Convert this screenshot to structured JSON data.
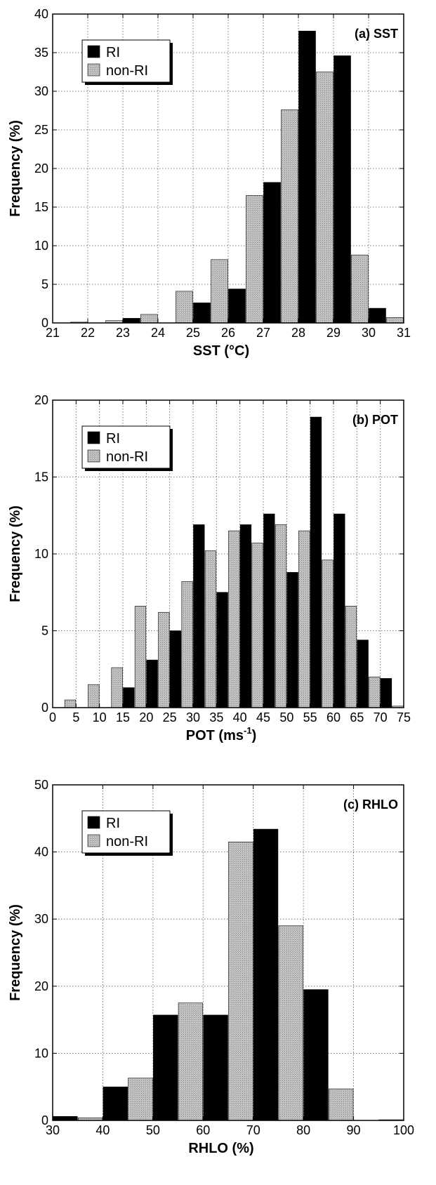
{
  "chart_data": [
    {
      "type": "bar",
      "panel_label": "(a) SST",
      "xlabel": "SST (°C)",
      "ylabel": "Frequency (%)",
      "xlim": [
        21,
        31
      ],
      "ylim": [
        0,
        40
      ],
      "xticks": [
        "21",
        "22",
        "23",
        "24",
        "25",
        "26",
        "27",
        "28",
        "29",
        "30",
        "31"
      ],
      "yticks": [
        "0",
        "5",
        "10",
        "15",
        "20",
        "25",
        "30",
        "35",
        "40"
      ],
      "grid": true,
      "legend_position": "top-left",
      "x": [
        21.5,
        22.5,
        23.5,
        24.5,
        25.5,
        26.5,
        27.5,
        28.5,
        29.5,
        30.5
      ],
      "series": [
        {
          "name": "RI",
          "color": "#000000",
          "values": [
            0,
            0,
            0.6,
            0,
            2.6,
            4.4,
            18.2,
            37.8,
            34.6,
            1.9
          ]
        },
        {
          "name": "non-RI",
          "color": "#b8b8b8",
          "values": [
            0.1,
            0.3,
            1.1,
            4.1,
            8.2,
            16.5,
            27.6,
            32.5,
            8.8,
            0.7
          ]
        }
      ]
    },
    {
      "type": "bar",
      "panel_label": "(b) POT",
      "xlabel": "POT (ms",
      "xlabel_sup": "-1",
      "xlabel_suffix": ")",
      "ylabel": "Frequency (%)",
      "xlim": [
        0,
        75
      ],
      "ylim": [
        0,
        20
      ],
      "xticks": [
        "0",
        "5",
        "10",
        "15",
        "20",
        "25",
        "30",
        "35",
        "40",
        "45",
        "50",
        "55",
        "60",
        "65",
        "70",
        "75"
      ],
      "yticks": [
        "0",
        "5",
        "10",
        "15",
        "20"
      ],
      "grid": true,
      "legend_position": "top-left",
      "x": [
        2.5,
        7.5,
        12.5,
        17.5,
        22.5,
        27.5,
        32.5,
        37.5,
        42.5,
        47.5,
        52.5,
        57.5,
        62.5,
        67.5,
        72.5
      ],
      "series": [
        {
          "name": "RI",
          "color": "#000000",
          "values": [
            0,
            0,
            0,
            1.3,
            3.1,
            5.0,
            11.9,
            7.5,
            11.9,
            12.6,
            8.8,
            18.9,
            12.6,
            4.4,
            1.9
          ]
        },
        {
          "name": "non-RI",
          "color": "#b8b8b8",
          "values": [
            0.5,
            1.5,
            2.6,
            6.6,
            6.2,
            8.2,
            10.2,
            11.5,
            10.7,
            11.9,
            11.5,
            9.6,
            6.6,
            2.0,
            0.1
          ]
        }
      ]
    },
    {
      "type": "bar",
      "panel_label": "(c) RHLO",
      "xlabel": "RHLO (%)",
      "ylabel": "Frequency (%)",
      "xlim": [
        30,
        100
      ],
      "ylim": [
        0,
        50
      ],
      "xticks": [
        "30",
        "40",
        "50",
        "60",
        "70",
        "80",
        "90",
        "100"
      ],
      "yticks": [
        "0",
        "10",
        "20",
        "30",
        "40",
        "50"
      ],
      "grid": true,
      "legend_position": "top-left",
      "x": [
        35,
        45,
        55,
        65,
        75,
        85,
        95
      ],
      "series": [
        {
          "name": "RI",
          "color": "#000000",
          "values": [
            0.6,
            5.0,
            15.7,
            15.7,
            43.4,
            19.5,
            0
          ]
        },
        {
          "name": "non-RI",
          "color": "#b8b8b8",
          "values": [
            0.4,
            6.3,
            17.5,
            41.5,
            29.0,
            4.7,
            0.1
          ]
        }
      ]
    }
  ]
}
